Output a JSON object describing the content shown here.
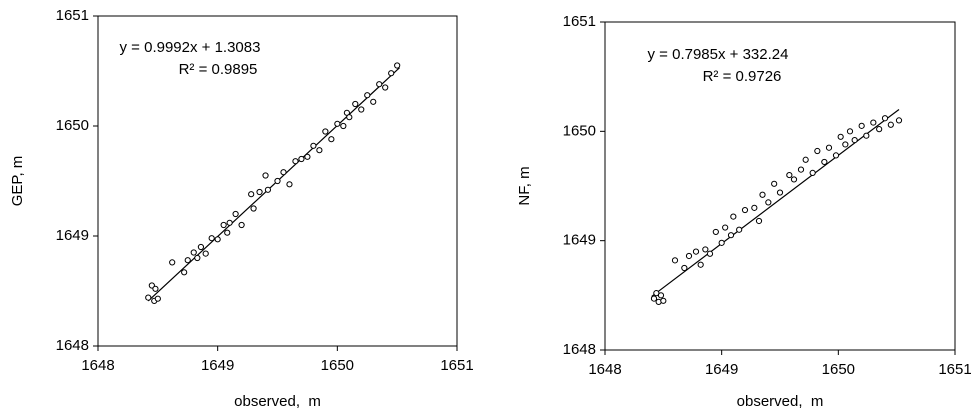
{
  "chart_data": [
    {
      "type": "scatter",
      "x_label": "observed,  m",
      "y_label": "GEP, m",
      "annotations": [
        "y = 0.9992x + 1.3083",
        "R² = 0.9895"
      ],
      "xlim": [
        1648,
        1651
      ],
      "ylim": [
        1648,
        1651
      ],
      "xticks": [
        1648,
        1649,
        1650,
        1651
      ],
      "yticks": [
        1648,
        1649,
        1650,
        1651
      ],
      "color": "#000000",
      "x": [
        1648.42,
        1648.45,
        1648.47,
        1648.48,
        1648.5,
        1648.62,
        1648.72,
        1648.75,
        1648.8,
        1648.83,
        1648.86,
        1648.9,
        1648.95,
        1649.0,
        1649.05,
        1649.08,
        1649.1,
        1649.15,
        1649.2,
        1649.28,
        1649.3,
        1649.35,
        1649.4,
        1649.42,
        1649.5,
        1649.55,
        1649.6,
        1649.65,
        1649.7,
        1649.75,
        1649.8,
        1649.85,
        1649.9,
        1649.95,
        1650.0,
        1650.05,
        1650.08,
        1650.1,
        1650.15,
        1650.2,
        1650.25,
        1650.3,
        1650.35,
        1650.4,
        1650.45,
        1650.5
      ],
      "y": [
        1648.44,
        1648.55,
        1648.41,
        1648.52,
        1648.43,
        1648.76,
        1648.67,
        1648.78,
        1648.85,
        1648.8,
        1648.9,
        1648.84,
        1648.98,
        1648.97,
        1649.1,
        1649.03,
        1649.12,
        1649.2,
        1649.1,
        1649.38,
        1649.25,
        1649.4,
        1649.55,
        1649.42,
        1649.5,
        1649.58,
        1649.47,
        1649.68,
        1649.7,
        1649.72,
        1649.82,
        1649.78,
        1649.95,
        1649.88,
        1650.02,
        1650.0,
        1650.12,
        1650.08,
        1650.2,
        1650.15,
        1650.28,
        1650.22,
        1650.38,
        1650.35,
        1650.48,
        1650.55
      ],
      "trendline": {
        "x": [
          1648.42,
          1650.52
        ],
        "y": [
          1648.41,
          1650.53
        ]
      }
    },
    {
      "type": "scatter",
      "x_label": "observed,  m",
      "y_label": "NF, m",
      "annotations": [
        "y = 0.7985x + 332.24",
        "R² = 0.9726"
      ],
      "xlim": [
        1648,
        1651
      ],
      "ylim": [
        1648,
        1651
      ],
      "xticks": [
        1648,
        1649,
        1650,
        1651
      ],
      "yticks": [
        1648,
        1649,
        1650,
        1651
      ],
      "color": "#000000",
      "x": [
        1648.42,
        1648.44,
        1648.46,
        1648.48,
        1648.5,
        1648.6,
        1648.68,
        1648.72,
        1648.78,
        1648.82,
        1648.86,
        1648.9,
        1648.95,
        1649.0,
        1649.03,
        1649.08,
        1649.1,
        1649.15,
        1649.2,
        1649.28,
        1649.32,
        1649.35,
        1649.4,
        1649.45,
        1649.5,
        1649.58,
        1649.62,
        1649.68,
        1649.72,
        1649.78,
        1649.82,
        1649.88,
        1649.92,
        1649.98,
        1650.02,
        1650.06,
        1650.1,
        1650.14,
        1650.2,
        1650.24,
        1650.3,
        1650.35,
        1650.4,
        1650.45,
        1650.52
      ],
      "y": [
        1648.47,
        1648.52,
        1648.44,
        1648.5,
        1648.45,
        1648.82,
        1648.75,
        1648.86,
        1648.9,
        1648.78,
        1648.92,
        1648.88,
        1649.08,
        1648.98,
        1649.12,
        1649.05,
        1649.22,
        1649.1,
        1649.28,
        1649.3,
        1649.18,
        1649.42,
        1649.35,
        1649.52,
        1649.44,
        1649.6,
        1649.56,
        1649.65,
        1649.74,
        1649.62,
        1649.82,
        1649.72,
        1649.85,
        1649.78,
        1649.95,
        1649.88,
        1650.0,
        1649.92,
        1650.05,
        1649.96,
        1650.08,
        1650.02,
        1650.12,
        1650.06,
        1650.1
      ],
      "trendline": {
        "x": [
          1648.4,
          1650.52
        ],
        "y": [
          1648.49,
          1650.2
        ]
      }
    }
  ]
}
